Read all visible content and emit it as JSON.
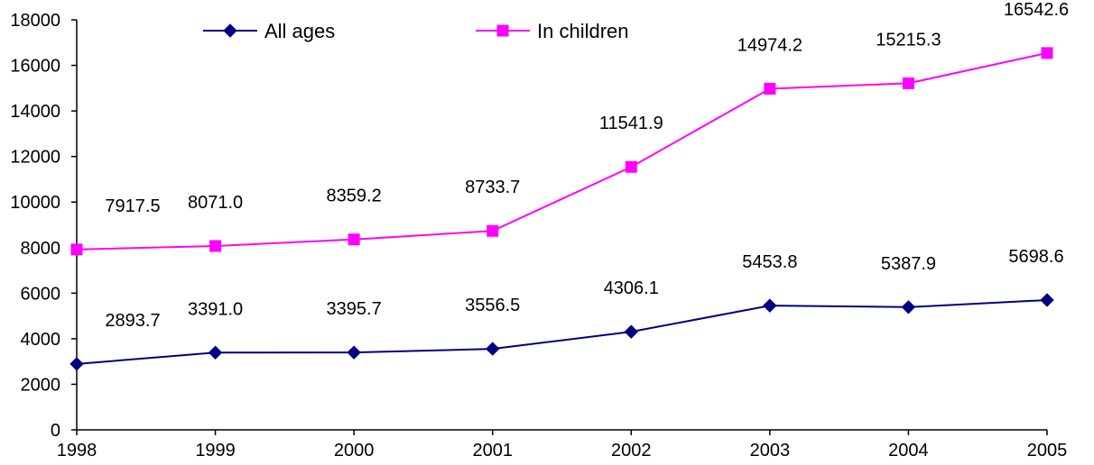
{
  "chart_data": {
    "type": "line",
    "title": "",
    "xlabel": "",
    "ylabel": "",
    "x": [
      "1998",
      "1999",
      "2000",
      "2001",
      "2002",
      "2003",
      "2004",
      "2005"
    ],
    "ylim": [
      0,
      18000
    ],
    "yticks": [
      "0",
      "2000",
      "4000",
      "6000",
      "8000",
      "10000",
      "12000",
      "14000",
      "16000",
      "18000"
    ],
    "grid": false,
    "legend_position": "top-center",
    "series": [
      {
        "name": "All ages",
        "color": "#000080",
        "marker": "diamond",
        "values": [
          2893.7,
          3391.0,
          3395.7,
          3556.5,
          4306.1,
          5453.8,
          5387.9,
          5698.6
        ],
        "labels": [
          "2893.7",
          "3391.0",
          "3395.7",
          "3556.5",
          "4306.1",
          "5453.8",
          "5387.9",
          "5698.6"
        ]
      },
      {
        "name": "In children",
        "color": "#FF00FF",
        "marker": "square",
        "values": [
          7917.5,
          8071.0,
          8359.2,
          8733.7,
          11541.9,
          14974.2,
          15215.3,
          16542.6
        ],
        "labels": [
          "7917.5",
          "8071.0",
          "8359.2",
          "8733.7",
          "11541.9",
          "14974.2",
          "15215.3",
          "16542.6"
        ]
      }
    ]
  }
}
